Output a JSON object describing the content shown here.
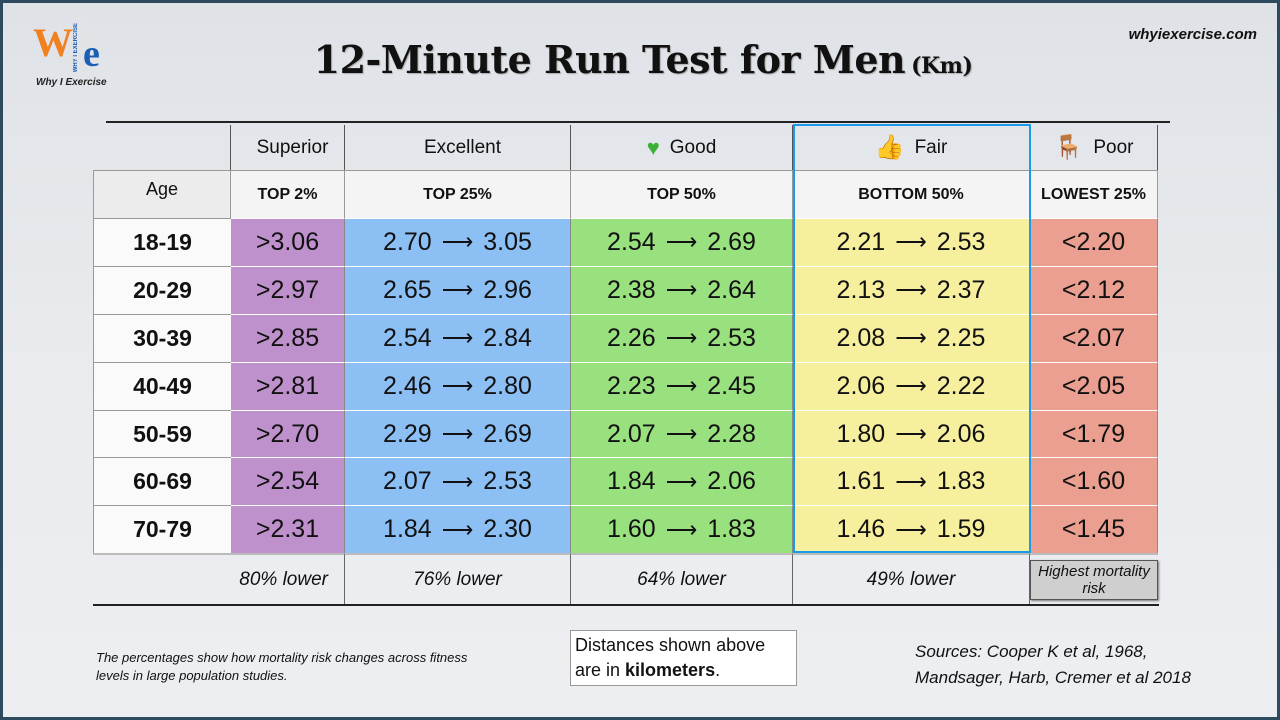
{
  "logo": {
    "text_w": "W",
    "text_e": "e",
    "tagline": "WHY I EXERCISE",
    "caption": "Why I Exercise"
  },
  "site": "whyiexercise.com",
  "title": "12-Minute Run Test for Men",
  "title_unit": "(Km)",
  "columns": [
    {
      "label": "Superior",
      "icon": "purple-circle-icon",
      "color": "#9b30d8",
      "rank": "TOP 2%",
      "footer": "80% lower",
      "cls": "sup"
    },
    {
      "label": "Excellent",
      "icon": "blue-circle-icon",
      "color": "#1f6fd6",
      "rank": "TOP 25%",
      "footer": "76% lower",
      "cls": "exc"
    },
    {
      "label": "Good",
      "icon": "green-heart-icon",
      "color": "#3cb034",
      "rank": "TOP 50%",
      "footer": "64% lower",
      "cls": "good"
    },
    {
      "label": "Fair",
      "icon": "thumbs-up-icon",
      "color": "#f2b62a",
      "rank": "BOTTOM 50%",
      "footer": "49% lower",
      "cls": "fair"
    },
    {
      "label": "Poor",
      "icon": "chair-icon",
      "color": "#8a4a2a",
      "rank": "LOWEST 25%",
      "footer": "Highest mortality risk",
      "cls": "poor"
    }
  ],
  "age_header": "Age",
  "rows": [
    {
      "age": "18-19",
      "sup": ">3.06",
      "exc": [
        "2.70",
        "3.05"
      ],
      "good": [
        "2.54",
        "2.69"
      ],
      "fair": [
        "2.21",
        "2.53"
      ],
      "poor": "<2.20"
    },
    {
      "age": "20-29",
      "sup": ">2.97",
      "exc": [
        "2.65",
        "2.96"
      ],
      "good": [
        "2.38",
        "2.64"
      ],
      "fair": [
        "2.13",
        "2.37"
      ],
      "poor": "<2.12"
    },
    {
      "age": "30-39",
      "sup": ">2.85",
      "exc": [
        "2.54",
        "2.84"
      ],
      "good": [
        "2.26",
        "2.53"
      ],
      "fair": [
        "2.08",
        "2.25"
      ],
      "poor": "<2.07"
    },
    {
      "age": "40-49",
      "sup": ">2.81",
      "exc": [
        "2.46",
        "2.80"
      ],
      "good": [
        "2.23",
        "2.45"
      ],
      "fair": [
        "2.06",
        "2.22"
      ],
      "poor": "<2.05"
    },
    {
      "age": "50-59",
      "sup": ">2.70",
      "exc": [
        "2.29",
        "2.69"
      ],
      "good": [
        "2.07",
        "2.28"
      ],
      "fair": [
        "1.80",
        "2.06"
      ],
      "poor": "<1.79"
    },
    {
      "age": "60-69",
      "sup": ">2.54",
      "exc": [
        "2.07",
        "2.53"
      ],
      "good": [
        "1.84",
        "2.06"
      ],
      "fair": [
        "1.61",
        "1.83"
      ],
      "poor": "<1.60"
    },
    {
      "age": "70-79",
      "sup": ">2.31",
      "exc": [
        "1.84",
        "2.30"
      ],
      "good": [
        "1.60",
        "1.83"
      ],
      "fair": [
        "1.46",
        "1.59"
      ],
      "poor": "<1.45"
    }
  ],
  "arrow": "⟶",
  "note": "The percentages show how mortality risk changes across fitness levels in large population studies.",
  "unit_note": {
    "line1": "Distances shown above",
    "line2_pre": "are in ",
    "line2_bold": "kilometers",
    "line2_post": "."
  },
  "sources": {
    "line1": "Sources:  Cooper K et al, 1968,",
    "line2": "Mandsager, Harb, Cremer et al 2018"
  }
}
